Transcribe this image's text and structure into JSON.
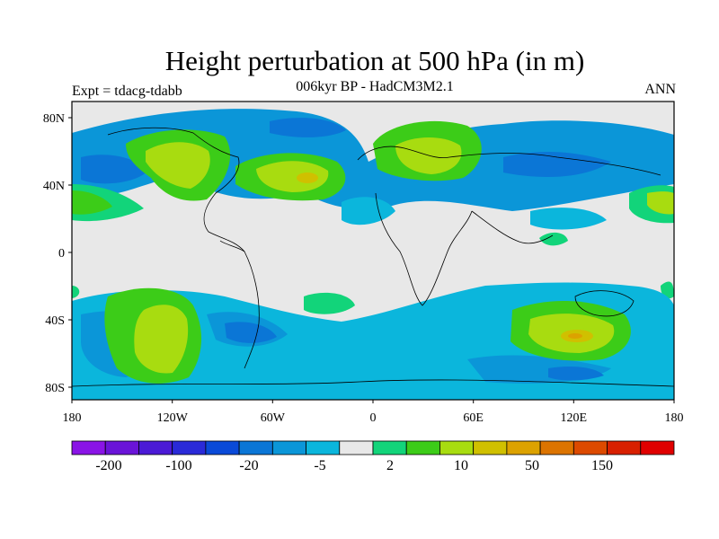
{
  "title": "Height perturbation at 500 hPa (in m)",
  "subtitle": "006kyr BP - HadCM3M2.1",
  "experiment": "Expt = tdacg-tdabb",
  "season": "ANN",
  "lat_labels": [
    "80N",
    "40N",
    "0",
    "40S",
    "80S"
  ],
  "lon_labels": [
    "180",
    "120W",
    "60W",
    "0",
    "60E",
    "120E",
    "180"
  ],
  "colorbar": {
    "colors": [
      "#8a14e6",
      "#6a14d8",
      "#4b1ad6",
      "#2a2ad8",
      "#0a4ad8",
      "#0b76d6",
      "#0b96d8",
      "#0bb6dc",
      "#e8e8e8",
      "#12d47a",
      "#3ccc18",
      "#a8dc10",
      "#d0c000",
      "#dca200",
      "#dc7400",
      "#dc4a00",
      "#d82000",
      "#e00000"
    ],
    "tick_labels": [
      "-200",
      "-100",
      "-20",
      "-5",
      "2",
      "10",
      "50",
      "150"
    ]
  },
  "field_colors": {
    "background": "#e8e8e8",
    "neg_light": "#0bb6dc",
    "neg_mid": "#0b96d8",
    "neg_deep": "#0b76d6",
    "neg_deeper": "#0a4ad8",
    "pos_light": "#12d47a",
    "pos_mid": "#3ccc18",
    "pos_high": "#a8dc10",
    "pos_top": "#d0c000",
    "pos_peak": "#dca200"
  }
}
